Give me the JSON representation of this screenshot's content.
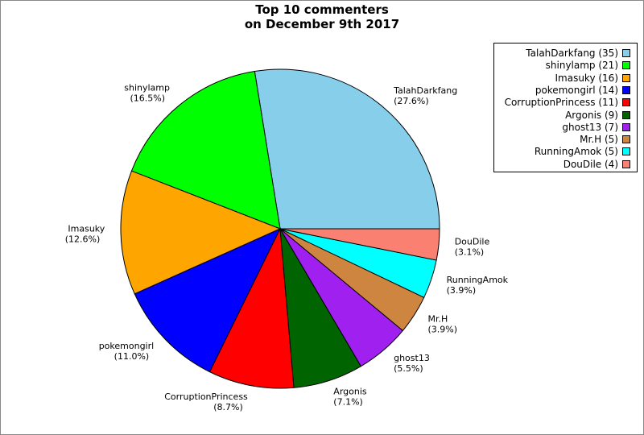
{
  "chart_data": {
    "type": "pie",
    "title_line1": "Top 10 commenters",
    "title_line2": "on December 9th 2017",
    "slices": [
      {
        "name": "TalahDarkfang",
        "value": 35,
        "percent_label": "(27.6%)",
        "legend_label": "TalahDarkfang (35)",
        "color": "#87CEEB"
      },
      {
        "name": "shinylamp",
        "value": 21,
        "percent_label": "(16.5%)",
        "legend_label": "shinylamp (21)",
        "color": "#00FF00"
      },
      {
        "name": "Imasuky",
        "value": 16,
        "percent_label": "(12.6%)",
        "legend_label": "Imasuky (16)",
        "color": "#FFA500"
      },
      {
        "name": "pokemongirl",
        "value": 14,
        "percent_label": "(11.0%)",
        "legend_label": "pokemongirl (14)",
        "color": "#0000FF"
      },
      {
        "name": "CorruptionPrincess",
        "value": 11,
        "percent_label": "(8.7%)",
        "legend_label": "CorruptionPrincess (11)",
        "color": "#FF0000"
      },
      {
        "name": "Argonis",
        "value": 9,
        "percent_label": "(7.1%)",
        "legend_label": "Argonis (9)",
        "color": "#006400"
      },
      {
        "name": "ghost13",
        "value": 7,
        "percent_label": "(5.5%)",
        "legend_label": "ghost13 (7)",
        "color": "#A020F0"
      },
      {
        "name": "Mr.H",
        "value": 5,
        "percent_label": "(3.9%)",
        "legend_label": "Mr.H (5)",
        "color": "#CD853F"
      },
      {
        "name": "RunningAmok",
        "value": 5,
        "percent_label": "(3.9%)",
        "legend_label": "RunningAmok (5)",
        "color": "#00FFFF"
      },
      {
        "name": "DouDile",
        "value": 4,
        "percent_label": "(3.1%)",
        "legend_label": "DouDile (4)",
        "color": "#FA8072"
      }
    ],
    "legend_position": "top-right"
  }
}
